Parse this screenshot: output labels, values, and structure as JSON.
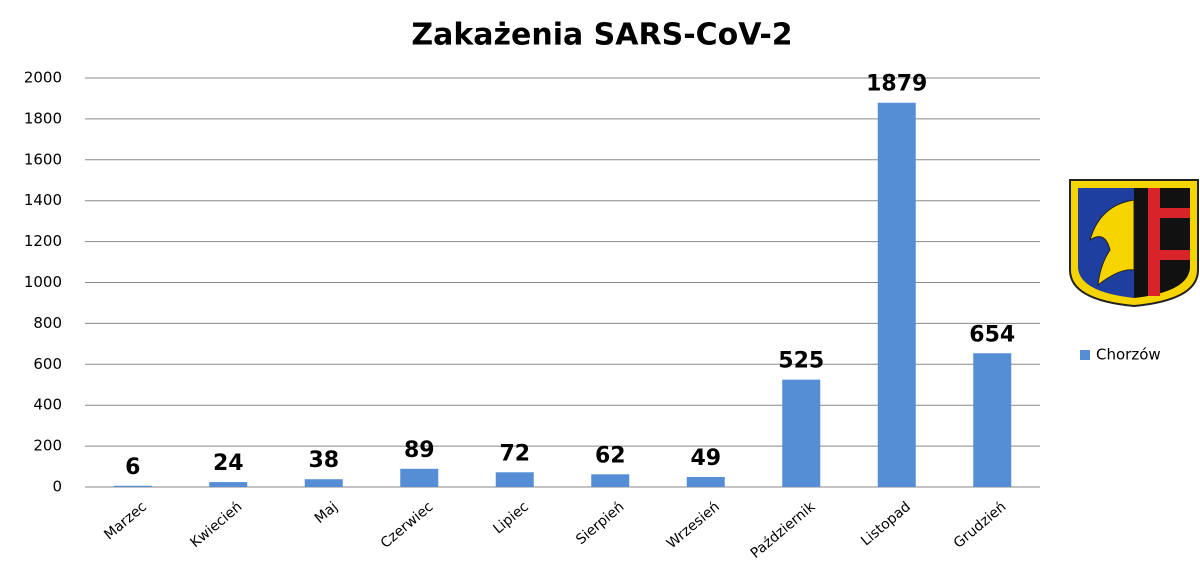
{
  "chart_data": {
    "type": "bar",
    "title": "Zakażenia SARS-CoV-2",
    "categories": [
      "Marzec",
      "Kwiecień",
      "Maj",
      "Czerwiec",
      "Lipiec",
      "Sierpień",
      "Wrzesień",
      "Październik",
      "Listopad",
      "Grudzień"
    ],
    "series": [
      {
        "name": "Chorzów",
        "color": "#558ed5",
        "values": [
          6,
          24,
          38,
          89,
          72,
          62,
          49,
          525,
          1879,
          654
        ]
      }
    ],
    "ylim": [
      0,
      2000
    ],
    "yticks": [
      0,
      200,
      400,
      600,
      800,
      1000,
      1200,
      1400,
      1600,
      1800,
      2000
    ],
    "grid": true,
    "legend": "right"
  }
}
